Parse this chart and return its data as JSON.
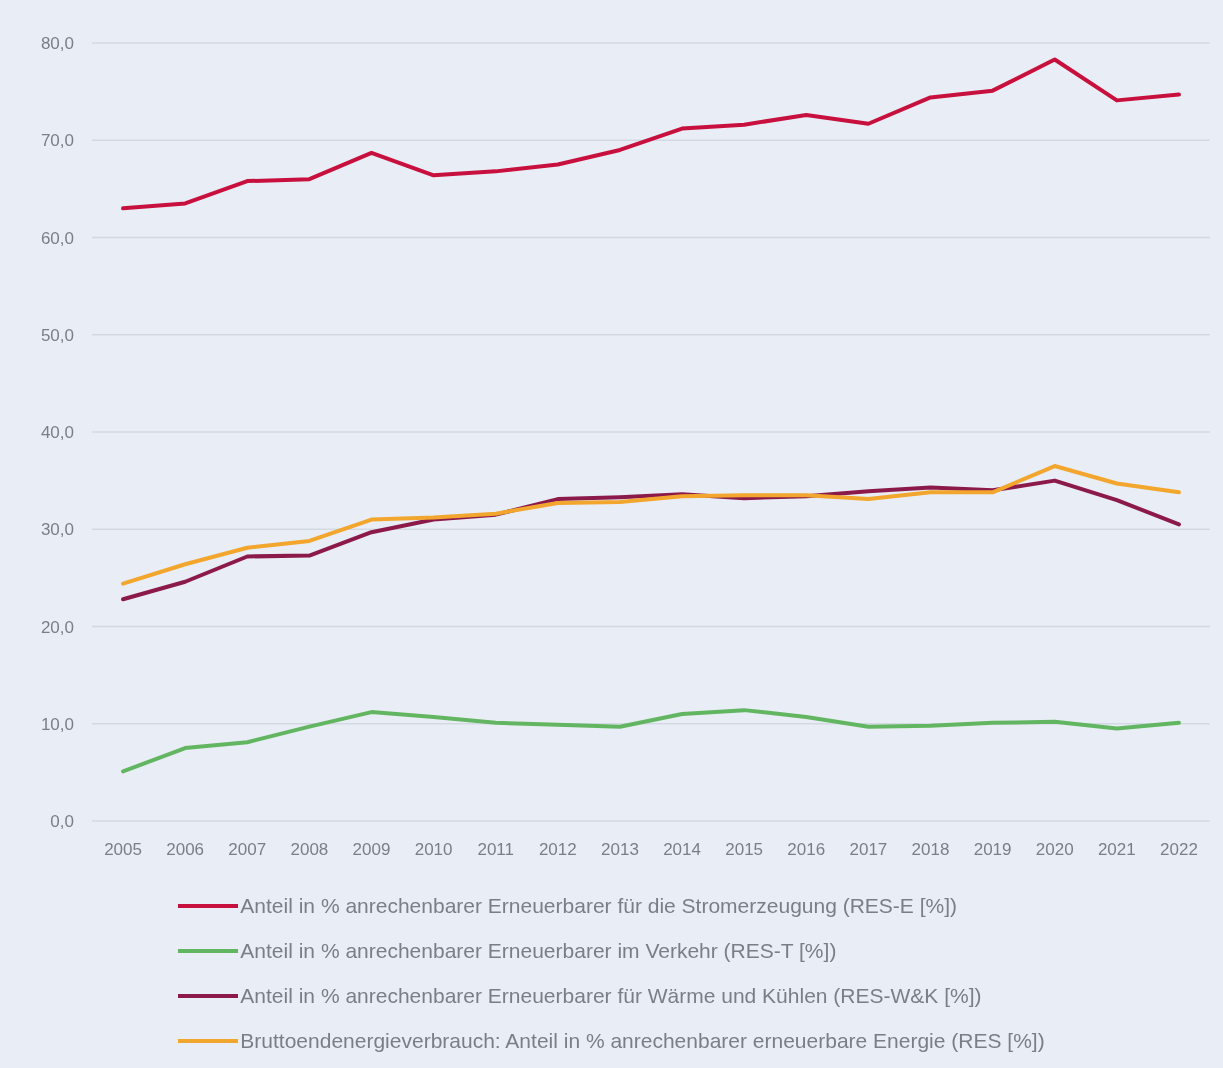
{
  "chart_data": {
    "type": "line",
    "categories": [
      "2005",
      "2006",
      "2007",
      "2008",
      "2009",
      "2010",
      "2011",
      "2012",
      "2013",
      "2014",
      "2015",
      "2016",
      "2017",
      "2018",
      "2019",
      "2020",
      "2021",
      "2022"
    ],
    "series": [
      {
        "name": "Anteil in % anrechenbarer Erneuerbarer für die Stromerzeugung (RES-E [%])",
        "color": "#c8103e",
        "values": [
          63.0,
          63.5,
          65.8,
          66.0,
          68.7,
          66.4,
          66.8,
          67.5,
          69.0,
          71.2,
          71.6,
          72.6,
          71.7,
          74.4,
          75.1,
          78.3,
          74.1,
          74.7
        ]
      },
      {
        "name": "Anteil in % anrechenbarer Erneuerbarer im Verkehr (RES-T [%])",
        "color": "#63b661",
        "values": [
          5.1,
          7.5,
          8.1,
          9.7,
          11.2,
          10.7,
          10.1,
          9.9,
          9.7,
          11.0,
          11.4,
          10.7,
          9.7,
          9.8,
          10.1,
          10.2,
          9.5,
          10.1
        ]
      },
      {
        "name": "Anteil in % anrechenbarer Erneuerbarer für Wärme und Kühlen (RES-W&K [%])",
        "color": "#8b1a4b",
        "values": [
          22.8,
          24.6,
          27.2,
          27.3,
          29.7,
          31.0,
          31.5,
          33.1,
          33.3,
          33.6,
          33.2,
          33.4,
          33.9,
          34.3,
          34.0,
          35.0,
          33.0,
          30.5
        ]
      },
      {
        "name": "Bruttoendenergieverbrauch: Anteil in % anrechenbarer erneuerbare Energie (RES [%])",
        "color": "#f2a62d",
        "values": [
          24.4,
          26.4,
          28.1,
          28.8,
          31.0,
          31.2,
          31.6,
          32.7,
          32.8,
          33.4,
          33.5,
          33.5,
          33.1,
          33.8,
          33.8,
          36.5,
          34.7,
          33.8
        ]
      }
    ],
    "ylim": [
      0,
      80
    ],
    "yticks": [
      {
        "value": 0,
        "label": "0,0"
      },
      {
        "value": 10,
        "label": "10,0"
      },
      {
        "value": 20,
        "label": "20,0"
      },
      {
        "value": 30,
        "label": "30,0"
      },
      {
        "value": 40,
        "label": "40,0"
      },
      {
        "value": 50,
        "label": "50,0"
      },
      {
        "value": 60,
        "label": "60,0"
      },
      {
        "value": 70,
        "label": "70,0"
      },
      {
        "value": 80,
        "label": "80,0"
      }
    ],
    "grid": "y",
    "legend": "bottom",
    "marker": "none"
  }
}
